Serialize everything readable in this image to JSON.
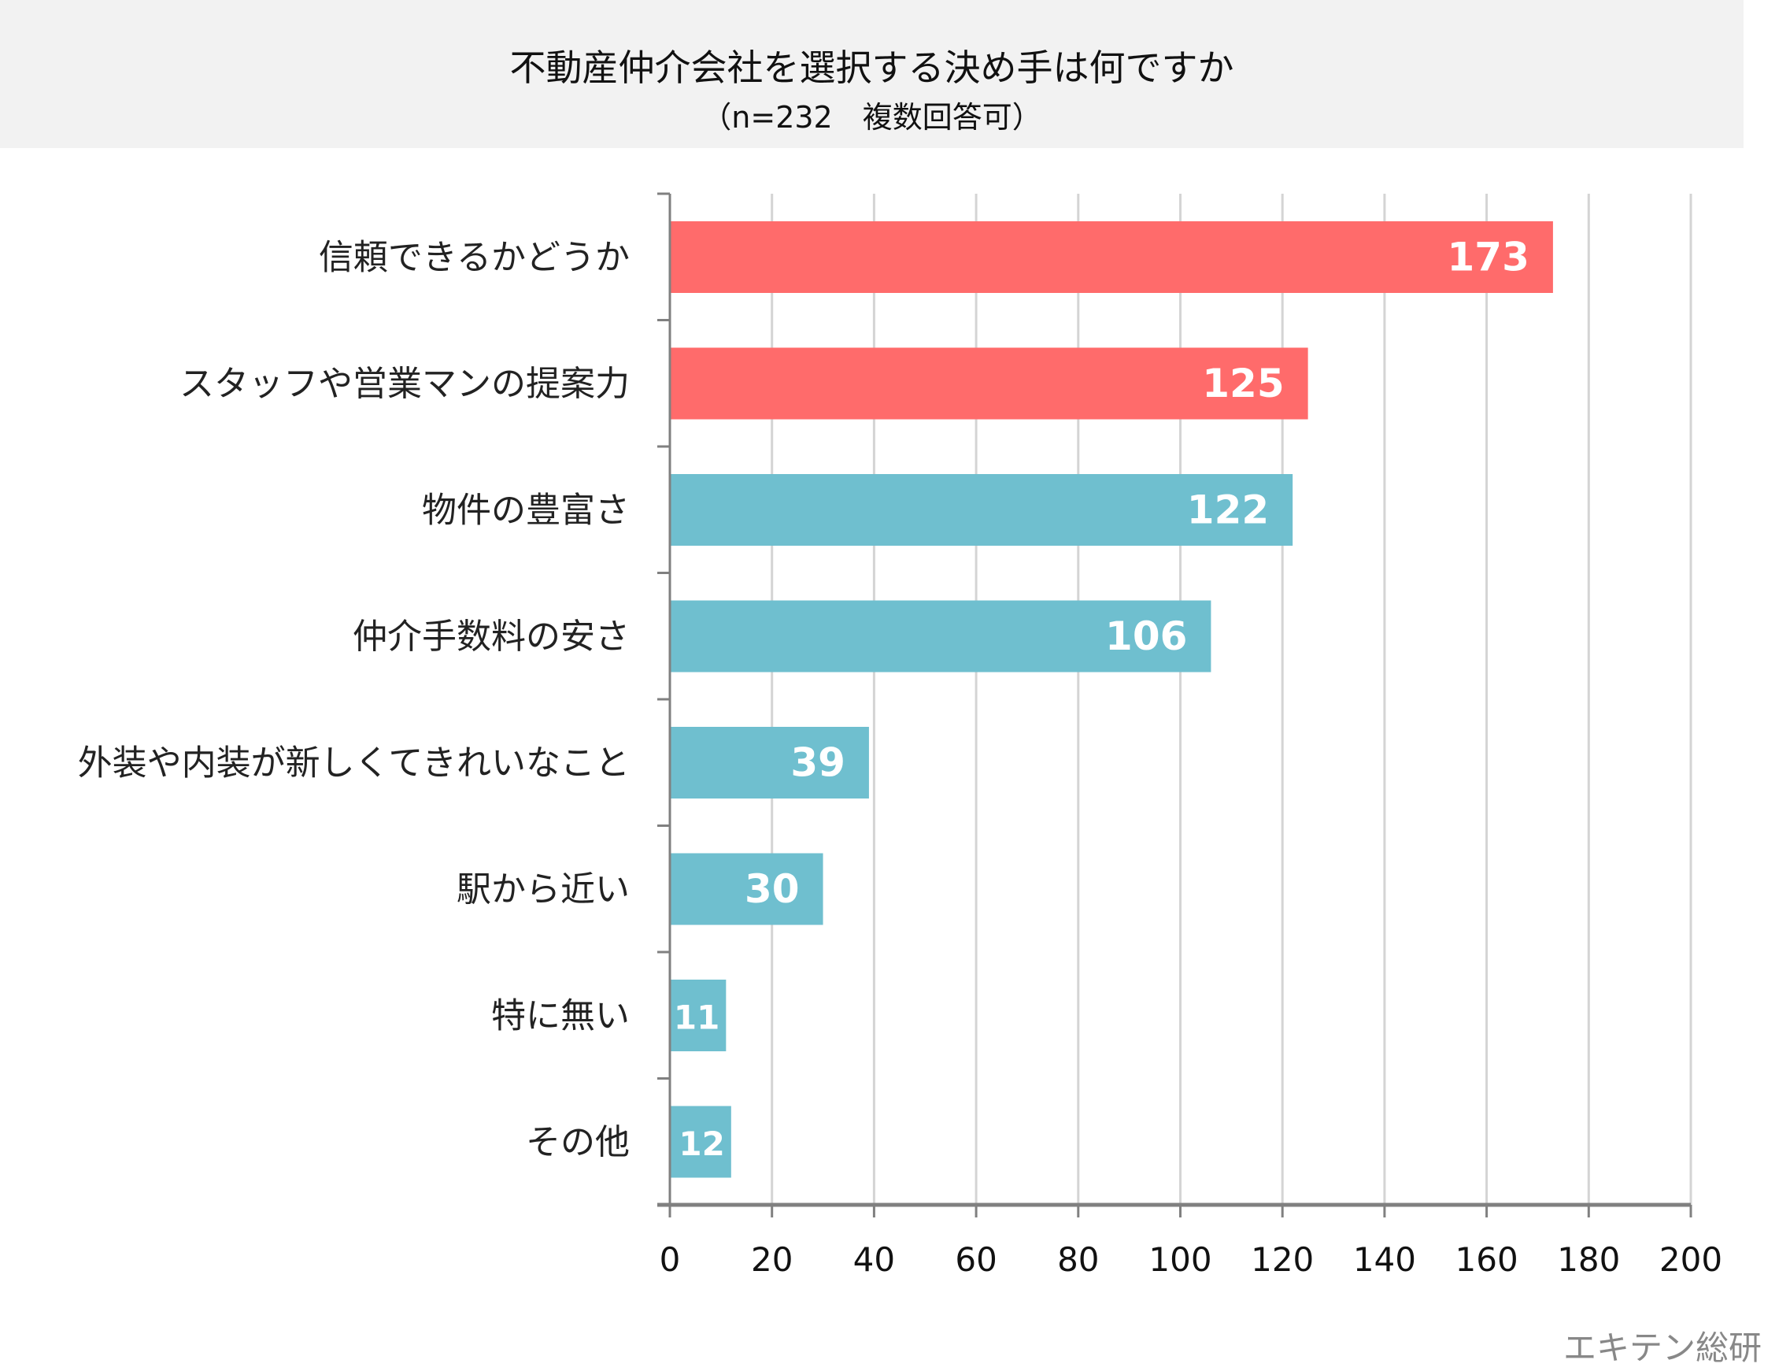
{
  "chart_data": {
    "type": "bar",
    "orientation": "horizontal",
    "title": "不動産仲介会社を選択する決め手は何ですか",
    "subtitle": "（n=232　複数回答可）",
    "categories": [
      "信頼できるかどうか",
      "スタッフや営業マンの提案力",
      "物件の豊富さ",
      "仲介手数料の安さ",
      "外装や内装が新しくてきれいなこと",
      "駅から近い",
      "特に無い",
      "その他"
    ],
    "values": [
      173,
      125,
      122,
      106,
      39,
      30,
      11,
      12
    ],
    "bar_colors": [
      "#FF6B6B",
      "#FF6B6B",
      "#6FBFCF",
      "#6FBFCF",
      "#6FBFCF",
      "#6FBFCF",
      "#6FBFCF",
      "#6FBFCF"
    ],
    "xlim": [
      0,
      200
    ],
    "xticks": [
      "0",
      "20",
      "40",
      "60",
      "80",
      "100",
      "120",
      "140",
      "160",
      "180",
      "200"
    ],
    "grid": true,
    "xlabel": "",
    "ylabel": ""
  },
  "footer": "エキテン総研"
}
